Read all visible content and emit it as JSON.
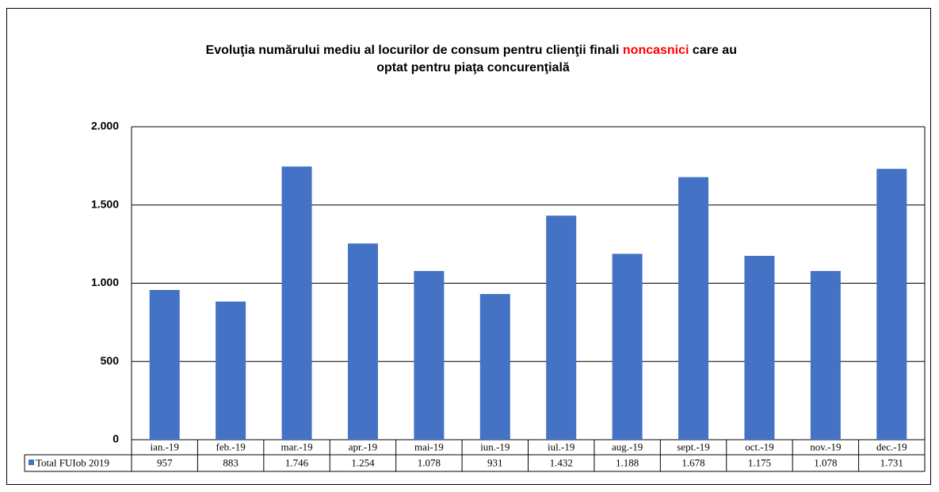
{
  "chart_data": {
    "type": "bar",
    "title": [
      "Evoluţia numărului mediu al locurilor de consum pentru clienţii finali",
      "noncasnici",
      "care au",
      "optat pentru piaţa concurenţială"
    ],
    "title_highlight_color": "#ff0000",
    "categories": [
      "ian.-19",
      "feb.-19",
      "mar.-19",
      "apr.-19",
      "mai-19",
      "iun.-19",
      "iul.-19",
      "aug.-19",
      "sept.-19",
      "oct.-19",
      "nov.-19",
      "dec.-19"
    ],
    "series": [
      {
        "name": "Total FUIob 2019",
        "color": "#4472c4",
        "values": [
          957,
          883,
          1746,
          1254,
          1078,
          931,
          1432,
          1188,
          1678,
          1175,
          1078,
          1731
        ],
        "value_labels": [
          "957",
          "883",
          "1.746",
          "1.254",
          "1.078",
          "931",
          "1.432",
          "1.188",
          "1.678",
          "1.175",
          "1.078",
          "1.731"
        ]
      }
    ],
    "ylim": [
      0,
      2000
    ],
    "yticks": [
      0,
      500,
      {
        "value": 1000,
        "label": "1.000"
      },
      {
        "value": 1500,
        "label": "1.500"
      },
      {
        "value": 2000,
        "label": "2.000"
      }
    ],
    "grid": true
  }
}
